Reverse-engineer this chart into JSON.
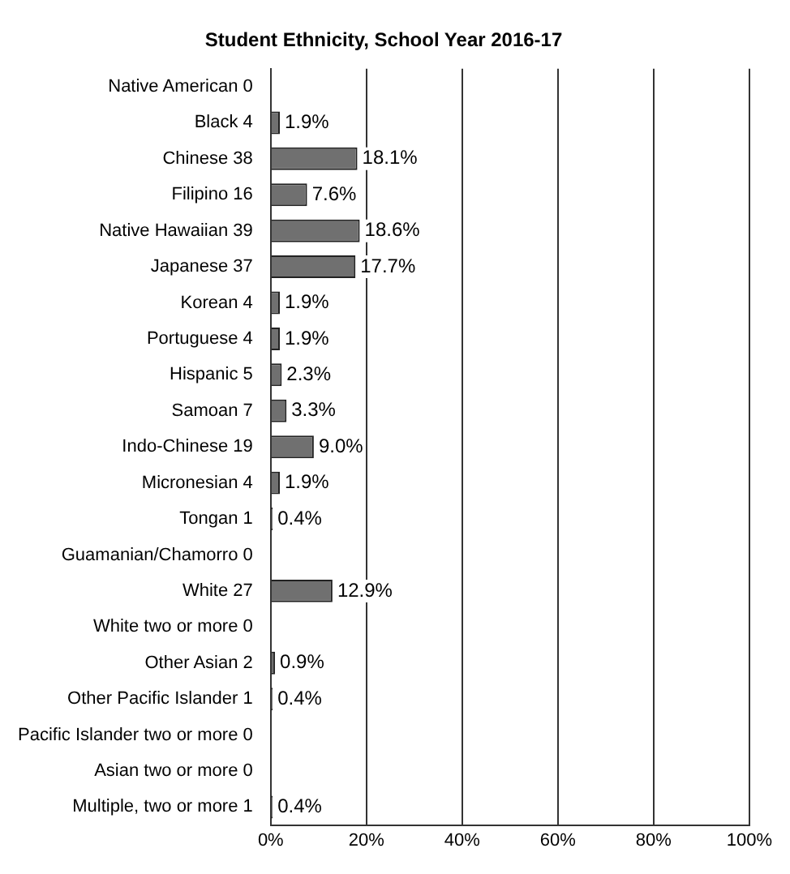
{
  "chart_data": {
    "type": "bar",
    "orientation": "horizontal",
    "title": "Student Ethnicity, School Year 2016-17",
    "categories": [
      "Native American 0",
      "Black 4",
      "Chinese 38",
      "Filipino 16",
      "Native Hawaiian 39",
      "Japanese 37",
      "Korean 4",
      "Portuguese 4",
      "Hispanic 5",
      "Samoan 7",
      "Indo-Chinese 19",
      "Micronesian 4",
      "Tongan 1",
      "Guamanian/Chamorro 0",
      "White 27",
      "White two or more 0",
      "Other Asian 2",
      "Other Pacific Islander 1",
      "Pacific Islander two or more 0",
      "Asian two or more 0",
      "Multiple, two or more 1"
    ],
    "values": [
      0,
      1.9,
      18.1,
      7.6,
      18.6,
      17.7,
      1.9,
      1.9,
      2.3,
      3.3,
      9.0,
      1.9,
      0.4,
      0,
      12.9,
      0,
      0.9,
      0.4,
      0,
      0,
      0.4
    ],
    "value_labels": [
      null,
      "1.9%",
      "18.1%",
      "7.6%",
      "18.6%",
      "17.7%",
      "1.9%",
      "1.9%",
      "2.3%",
      "3.3%",
      "9.0%",
      "1.9%",
      "0.4%",
      null,
      "12.9%",
      null,
      "0.9%",
      "0.4%",
      null,
      null,
      "0.4%"
    ],
    "color": "#707070",
    "xlim": [
      0,
      100
    ],
    "xticks": [
      {
        "value": 0,
        "label": "0%"
      },
      {
        "value": 20,
        "label": "20%"
      },
      {
        "value": 40,
        "label": "40%"
      },
      {
        "value": 60,
        "label": "60%"
      },
      {
        "value": 80,
        "label": "80%"
      },
      {
        "value": 100,
        "label": "100%"
      }
    ],
    "grid": "x",
    "legend": false
  }
}
